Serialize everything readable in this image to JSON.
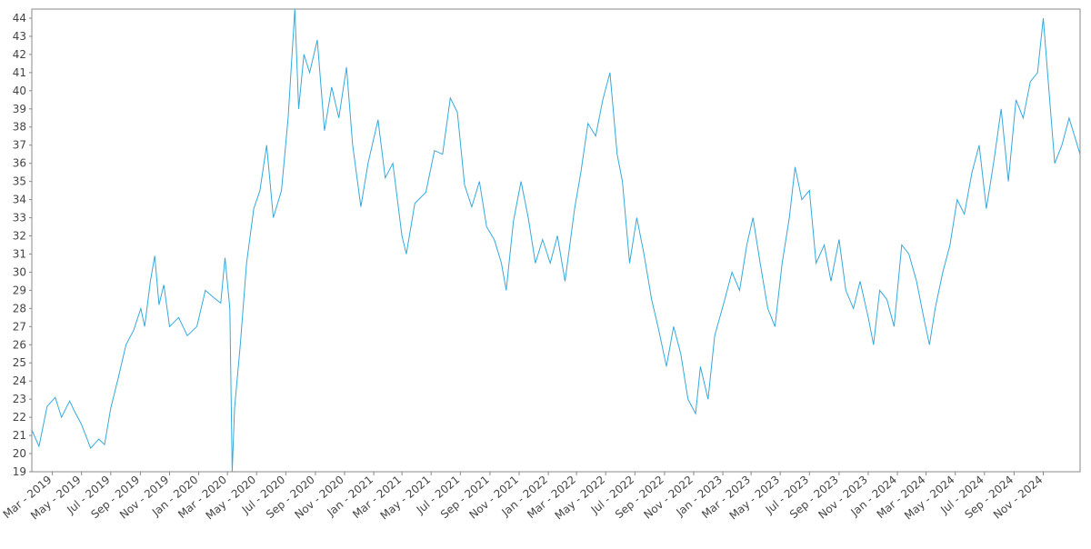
{
  "chart_data": {
    "type": "line",
    "title": "",
    "xlabel": "",
    "ylabel": "",
    "grid": false,
    "legend": "none",
    "line_color": "#35A9DD",
    "xlim": [
      "2019-01-17",
      "2025-01-17"
    ],
    "ylim": [
      19,
      44.5
    ],
    "yticks": [
      19,
      20,
      21,
      22,
      23,
      24,
      25,
      26,
      27,
      28,
      29,
      30,
      31,
      32,
      33,
      34,
      35,
      36,
      37,
      38,
      39,
      40,
      41,
      42,
      43,
      44
    ],
    "xticks": [
      {
        "date": "2019-03-01",
        "label": "Mar - 2019"
      },
      {
        "date": "2019-05-01",
        "label": "May - 2019"
      },
      {
        "date": "2019-07-01",
        "label": "Jul - 2019"
      },
      {
        "date": "2019-09-01",
        "label": "Sep - 2019"
      },
      {
        "date": "2019-11-01",
        "label": "Nov - 2019"
      },
      {
        "date": "2020-01-01",
        "label": "Jan - 2020"
      },
      {
        "date": "2020-03-01",
        "label": "Mar - 2020"
      },
      {
        "date": "2020-05-01",
        "label": "May - 2020"
      },
      {
        "date": "2020-07-01",
        "label": "Jul - 2020"
      },
      {
        "date": "2020-09-01",
        "label": "Sep - 2020"
      },
      {
        "date": "2020-11-01",
        "label": "Nov - 2020"
      },
      {
        "date": "2021-01-01",
        "label": "Jan - 2021"
      },
      {
        "date": "2021-03-01",
        "label": "Mar - 2021"
      },
      {
        "date": "2021-05-01",
        "label": "May - 2021"
      },
      {
        "date": "2021-07-01",
        "label": "Jul - 2021"
      },
      {
        "date": "2021-09-01",
        "label": "Sep - 2021"
      },
      {
        "date": "2021-11-01",
        "label": "Nov - 2021"
      },
      {
        "date": "2022-01-01",
        "label": "Jan - 2022"
      },
      {
        "date": "2022-03-01",
        "label": "Mar - 2022"
      },
      {
        "date": "2022-05-01",
        "label": "May - 2022"
      },
      {
        "date": "2022-07-01",
        "label": "Jul - 2022"
      },
      {
        "date": "2022-09-01",
        "label": "Sep - 2022"
      },
      {
        "date": "2022-11-01",
        "label": "Nov - 2022"
      },
      {
        "date": "2023-01-01",
        "label": "Jan - 2023"
      },
      {
        "date": "2023-03-01",
        "label": "Mar - 2023"
      },
      {
        "date": "2023-05-01",
        "label": "May - 2023"
      },
      {
        "date": "2023-07-01",
        "label": "Jul - 2023"
      },
      {
        "date": "2023-09-01",
        "label": "Sep - 2023"
      },
      {
        "date": "2023-11-01",
        "label": "Nov - 2023"
      },
      {
        "date": "2024-01-01",
        "label": "Jan - 2024"
      },
      {
        "date": "2024-03-01",
        "label": "Mar - 2024"
      },
      {
        "date": "2024-05-01",
        "label": "May - 2024"
      },
      {
        "date": "2024-07-01",
        "label": "Jul - 2024"
      },
      {
        "date": "2024-09-01",
        "label": "Sep - 2024"
      },
      {
        "date": "2024-11-01",
        "label": "Nov - 2024"
      }
    ],
    "series": [
      {
        "points": [
          [
            "2019-01-17",
            21.3
          ],
          [
            "2019-02-01",
            20.4
          ],
          [
            "2019-02-18",
            22.6
          ],
          [
            "2019-03-07",
            23.1
          ],
          [
            "2019-03-20",
            22.0
          ],
          [
            "2019-04-06",
            22.9
          ],
          [
            "2019-04-17",
            22.3
          ],
          [
            "2019-05-01",
            21.6
          ],
          [
            "2019-05-20",
            20.3
          ],
          [
            "2019-06-06",
            20.8
          ],
          [
            "2019-06-18",
            20.5
          ],
          [
            "2019-07-01",
            22.5
          ],
          [
            "2019-07-17",
            24.2
          ],
          [
            "2019-08-02",
            26.0
          ],
          [
            "2019-08-18",
            26.8
          ],
          [
            "2019-09-02",
            28.0
          ],
          [
            "2019-09-10",
            27.0
          ],
          [
            "2019-09-22",
            29.5
          ],
          [
            "2019-10-01",
            30.9
          ],
          [
            "2019-10-10",
            28.2
          ],
          [
            "2019-10-20",
            29.3
          ],
          [
            "2019-11-01",
            27.0
          ],
          [
            "2019-11-20",
            27.5
          ],
          [
            "2019-12-08",
            26.5
          ],
          [
            "2019-12-28",
            27.0
          ],
          [
            "2020-01-15",
            29.0
          ],
          [
            "2020-02-01",
            28.6
          ],
          [
            "2020-02-16",
            28.3
          ],
          [
            "2020-02-25",
            30.8
          ],
          [
            "2020-03-06",
            28.0
          ],
          [
            "2020-03-11",
            19.0
          ],
          [
            "2020-03-16",
            22.5
          ],
          [
            "2020-03-28",
            26.0
          ],
          [
            "2020-04-10",
            30.5
          ],
          [
            "2020-04-25",
            33.5
          ],
          [
            "2020-05-08",
            34.5
          ],
          [
            "2020-05-22",
            37.0
          ],
          [
            "2020-06-05",
            33.0
          ],
          [
            "2020-06-22",
            34.5
          ],
          [
            "2020-07-06",
            38.5
          ],
          [
            "2020-07-20",
            44.5
          ],
          [
            "2020-07-28",
            39.0
          ],
          [
            "2020-08-08",
            42.0
          ],
          [
            "2020-08-20",
            41.0
          ],
          [
            "2020-09-05",
            42.8
          ],
          [
            "2020-09-20",
            37.8
          ],
          [
            "2020-10-05",
            40.2
          ],
          [
            "2020-10-20",
            38.5
          ],
          [
            "2020-11-05",
            41.3
          ],
          [
            "2020-11-18",
            37.0
          ],
          [
            "2020-12-05",
            33.6
          ],
          [
            "2020-12-20",
            36.0
          ],
          [
            "2021-01-10",
            38.4
          ],
          [
            "2021-01-25",
            35.2
          ],
          [
            "2021-02-10",
            36.0
          ],
          [
            "2021-03-01",
            32.0
          ],
          [
            "2021-03-10",
            31.0
          ],
          [
            "2021-03-28",
            33.8
          ],
          [
            "2021-04-20",
            34.4
          ],
          [
            "2021-05-08",
            36.7
          ],
          [
            "2021-05-25",
            36.5
          ],
          [
            "2021-06-10",
            39.6
          ],
          [
            "2021-06-25",
            38.8
          ],
          [
            "2021-07-10",
            34.8
          ],
          [
            "2021-07-25",
            33.6
          ],
          [
            "2021-08-10",
            35.0
          ],
          [
            "2021-08-25",
            32.5
          ],
          [
            "2021-09-10",
            31.8
          ],
          [
            "2021-09-25",
            30.5
          ],
          [
            "2021-10-05",
            29.0
          ],
          [
            "2021-10-20",
            32.8
          ],
          [
            "2021-11-05",
            35.0
          ],
          [
            "2021-11-20",
            33.0
          ],
          [
            "2021-12-05",
            30.5
          ],
          [
            "2021-12-20",
            31.8
          ],
          [
            "2022-01-05",
            30.5
          ],
          [
            "2022-01-20",
            32.0
          ],
          [
            "2022-02-05",
            29.5
          ],
          [
            "2022-02-25",
            33.5
          ],
          [
            "2022-03-10",
            35.5
          ],
          [
            "2022-03-25",
            38.2
          ],
          [
            "2022-04-10",
            37.5
          ],
          [
            "2022-04-25",
            39.5
          ],
          [
            "2022-05-10",
            41.0
          ],
          [
            "2022-05-25",
            36.5
          ],
          [
            "2022-06-05",
            35.0
          ],
          [
            "2022-06-20",
            30.5
          ],
          [
            "2022-07-05",
            33.0
          ],
          [
            "2022-07-20",
            31.0
          ],
          [
            "2022-08-05",
            28.5
          ],
          [
            "2022-08-20",
            26.8
          ],
          [
            "2022-09-05",
            24.8
          ],
          [
            "2022-09-20",
            27.0
          ],
          [
            "2022-10-05",
            25.5
          ],
          [
            "2022-10-20",
            23.0
          ],
          [
            "2022-11-05",
            22.2
          ],
          [
            "2022-11-15",
            24.8
          ],
          [
            "2022-12-01",
            23.0
          ],
          [
            "2022-12-15",
            26.5
          ],
          [
            "2023-01-05",
            28.5
          ],
          [
            "2023-01-20",
            30.0
          ],
          [
            "2023-02-05",
            29.0
          ],
          [
            "2023-02-20",
            31.5
          ],
          [
            "2023-03-05",
            33.0
          ],
          [
            "2023-03-20",
            30.5
          ],
          [
            "2023-04-05",
            28.0
          ],
          [
            "2023-04-20",
            27.0
          ],
          [
            "2023-05-05",
            30.5
          ],
          [
            "2023-05-20",
            33.0
          ],
          [
            "2023-06-01",
            35.8
          ],
          [
            "2023-06-15",
            34.0
          ],
          [
            "2023-07-01",
            34.5
          ],
          [
            "2023-07-15",
            30.5
          ],
          [
            "2023-08-01",
            31.5
          ],
          [
            "2023-08-15",
            29.5
          ],
          [
            "2023-09-01",
            31.8
          ],
          [
            "2023-09-15",
            29.0
          ],
          [
            "2023-10-01",
            28.0
          ],
          [
            "2023-10-15",
            29.5
          ],
          [
            "2023-11-01",
            27.5
          ],
          [
            "2023-11-12",
            26.0
          ],
          [
            "2023-11-25",
            29.0
          ],
          [
            "2023-12-10",
            28.5
          ],
          [
            "2023-12-25",
            27.0
          ],
          [
            "2024-01-10",
            31.5
          ],
          [
            "2024-01-25",
            31.0
          ],
          [
            "2024-02-10",
            29.5
          ],
          [
            "2024-02-25",
            27.5
          ],
          [
            "2024-03-08",
            26.0
          ],
          [
            "2024-03-20",
            28.0
          ],
          [
            "2024-04-05",
            30.0
          ],
          [
            "2024-04-20",
            31.5
          ],
          [
            "2024-05-05",
            34.0
          ],
          [
            "2024-05-20",
            33.2
          ],
          [
            "2024-06-05",
            35.5
          ],
          [
            "2024-06-20",
            37.0
          ],
          [
            "2024-07-05",
            33.5
          ],
          [
            "2024-07-20",
            36.0
          ],
          [
            "2024-08-05",
            39.0
          ],
          [
            "2024-08-20",
            35.0
          ],
          [
            "2024-09-05",
            39.5
          ],
          [
            "2024-09-20",
            38.5
          ],
          [
            "2024-10-05",
            40.5
          ],
          [
            "2024-10-20",
            41.0
          ],
          [
            "2024-11-01",
            44.0
          ],
          [
            "2024-11-10",
            41.0
          ],
          [
            "2024-11-25",
            36.0
          ],
          [
            "2024-12-10",
            37.0
          ],
          [
            "2024-12-25",
            38.5
          ],
          [
            "2025-01-17",
            36.5
          ]
        ]
      }
    ]
  }
}
